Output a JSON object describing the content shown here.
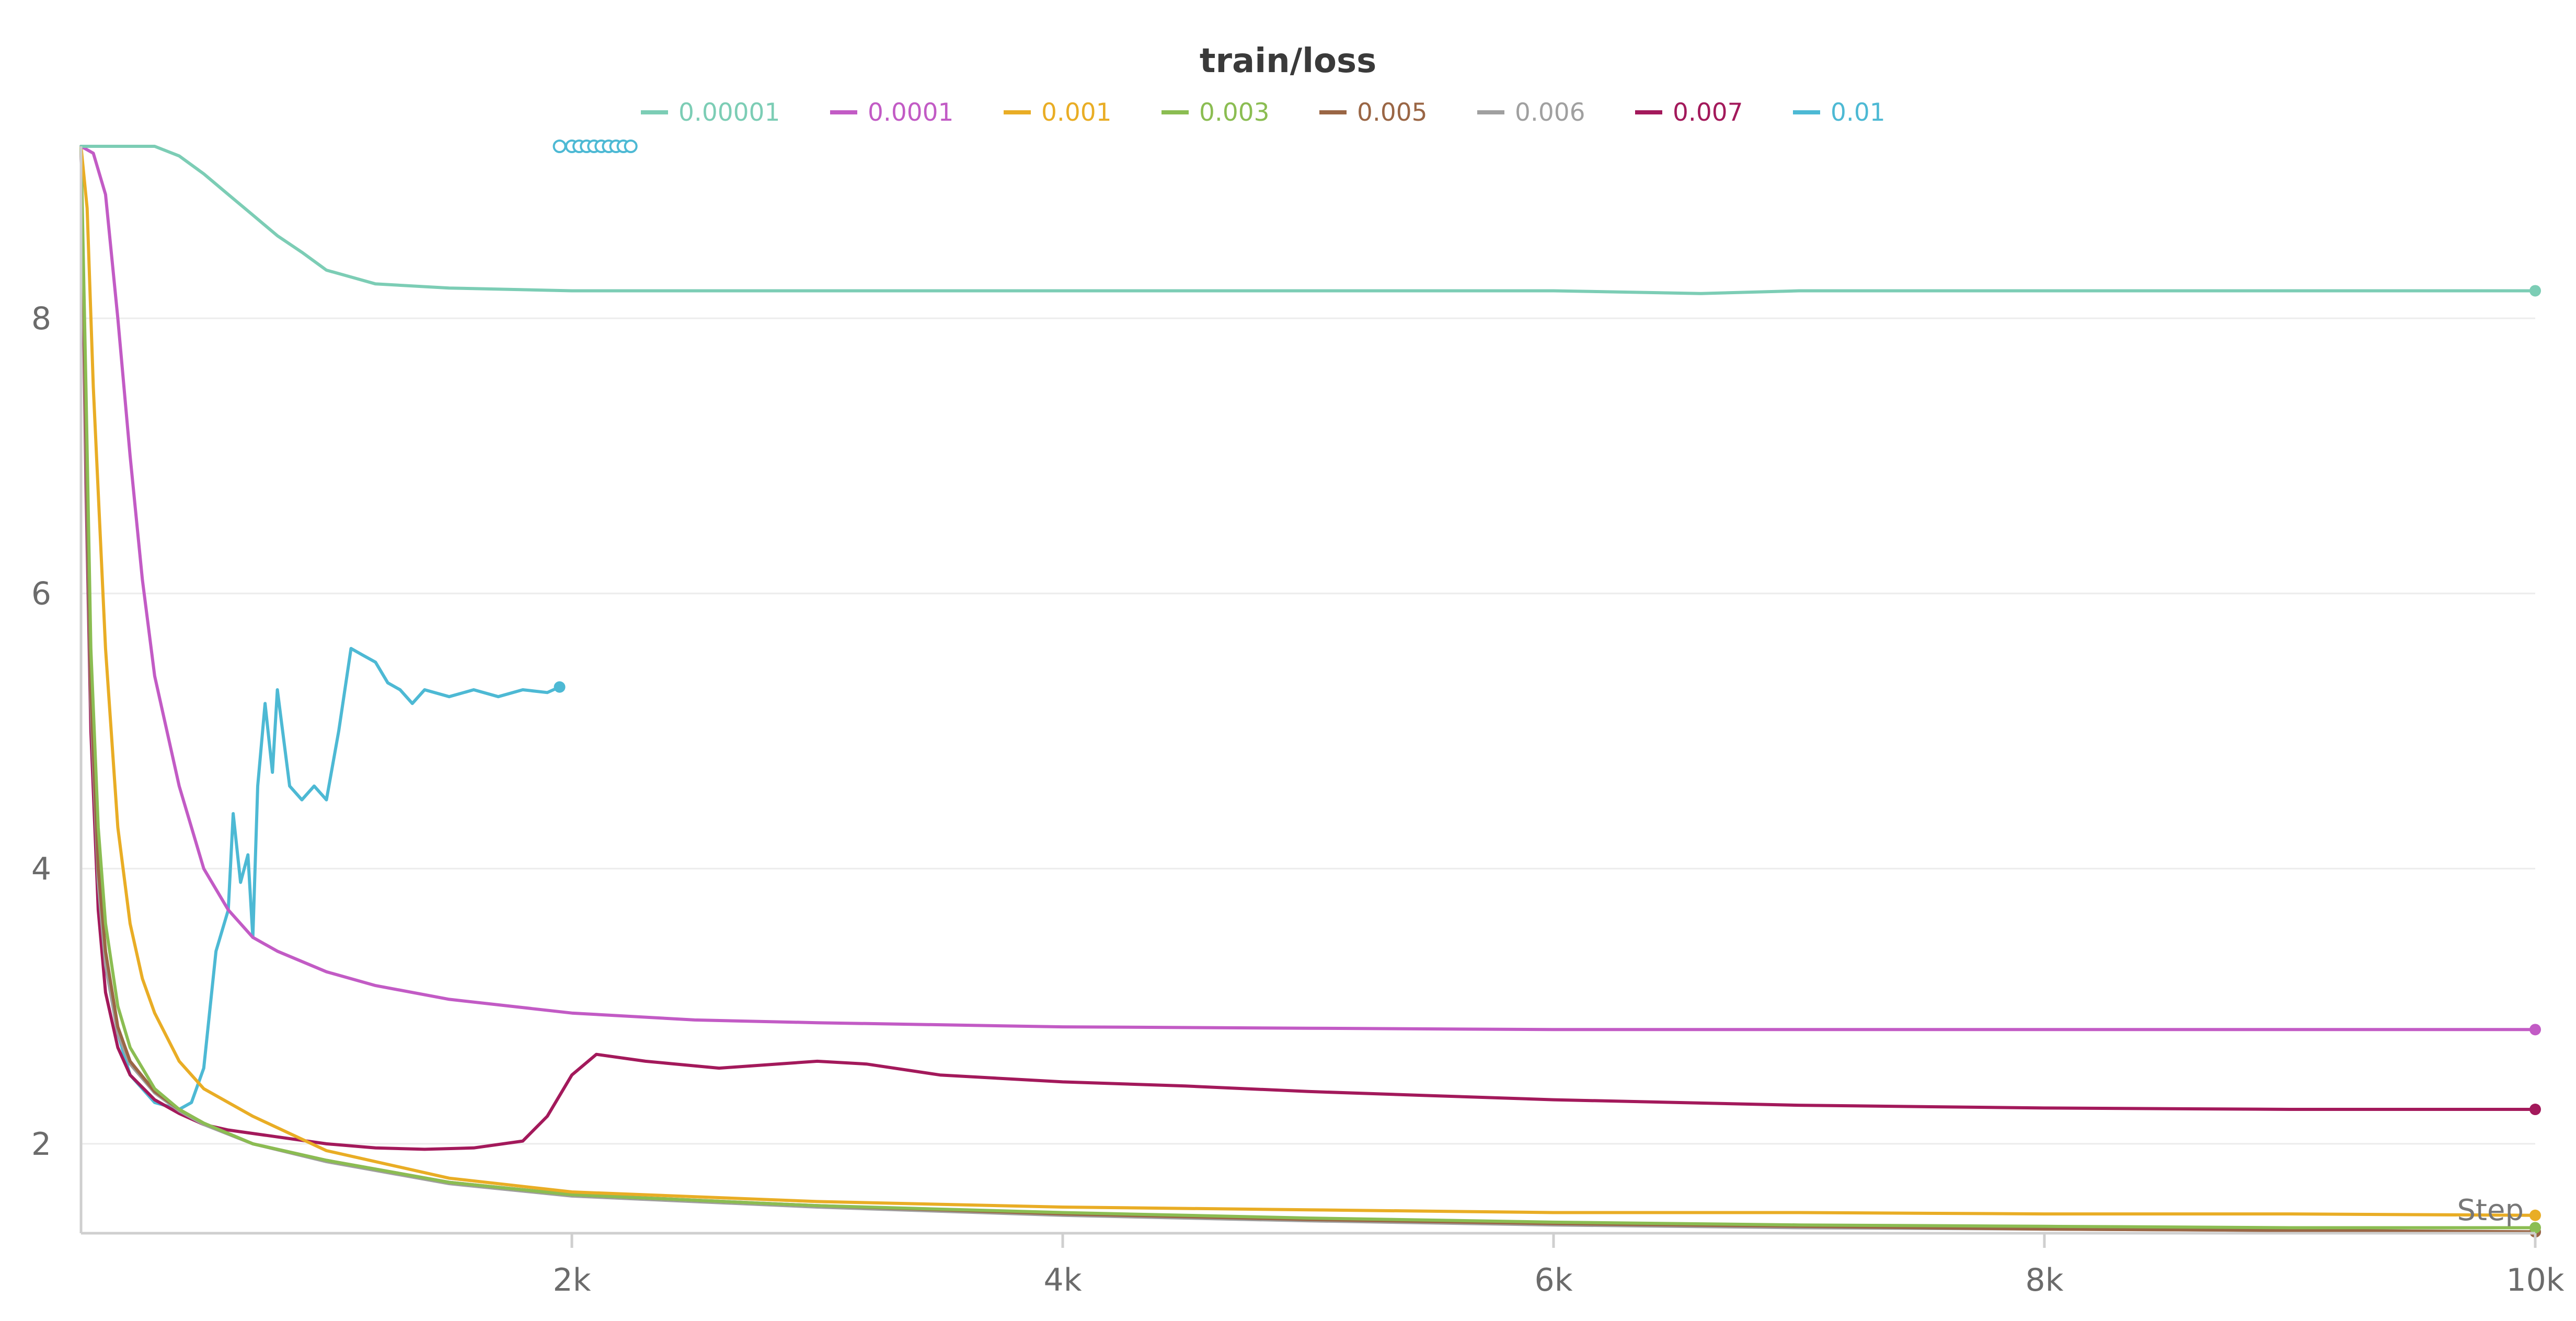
{
  "chart_data": {
    "type": "line",
    "title": "train/loss",
    "xlabel": "Step",
    "ylabel": "",
    "xlim": [
      0,
      10000
    ],
    "ylim": [
      1.35,
      9.25
    ],
    "x_ticks": [
      2000,
      4000,
      6000,
      8000,
      10000
    ],
    "x_tick_labels": [
      "2k",
      "4k",
      "6k",
      "8k",
      "10k"
    ],
    "y_ticks": [
      2,
      4,
      6,
      8
    ],
    "y_tick_labels": [
      "2",
      "4",
      "6",
      "8"
    ],
    "grid": true,
    "legend_position": "top-center",
    "series": [
      {
        "name": "0.00001",
        "color": "#7ccdb5",
        "x": [
          0,
          300,
          400,
          500,
          600,
          700,
          800,
          900,
          1000,
          1100,
          1200,
          1500,
          2000,
          3000,
          4000,
          5000,
          6000,
          6600,
          7000,
          8000,
          9000,
          10000
        ],
        "y": [
          9.25,
          9.25,
          9.18,
          9.05,
          8.9,
          8.75,
          8.6,
          8.48,
          8.35,
          8.3,
          8.25,
          8.22,
          8.2,
          8.2,
          8.2,
          8.2,
          8.2,
          8.18,
          8.2,
          8.2,
          8.2,
          8.2
        ]
      },
      {
        "name": "0.0001",
        "color": "#c25bc5",
        "x": [
          0,
          50,
          100,
          150,
          200,
          250,
          300,
          400,
          500,
          600,
          700,
          800,
          1000,
          1200,
          1500,
          2000,
          2500,
          3000,
          4000,
          5000,
          6000,
          7000,
          8000,
          9000,
          10000
        ],
        "y": [
          9.25,
          9.2,
          8.9,
          8.0,
          7.0,
          6.1,
          5.4,
          4.6,
          4.0,
          3.7,
          3.5,
          3.4,
          3.25,
          3.15,
          3.05,
          2.95,
          2.9,
          2.88,
          2.85,
          2.84,
          2.83,
          2.83,
          2.83,
          2.83,
          2.83
        ]
      },
      {
        "name": "0.001",
        "color": "#e9ad25",
        "x": [
          0,
          25,
          50,
          100,
          150,
          200,
          250,
          300,
          400,
          500,
          700,
          1000,
          1500,
          2000,
          3000,
          4000,
          5000,
          6000,
          7000,
          8000,
          9000,
          10000
        ],
        "y": [
          9.25,
          8.8,
          7.5,
          5.6,
          4.3,
          3.6,
          3.2,
          2.95,
          2.6,
          2.4,
          2.2,
          1.95,
          1.75,
          1.65,
          1.58,
          1.54,
          1.52,
          1.5,
          1.5,
          1.49,
          1.49,
          1.48
        ]
      },
      {
        "name": "0.003",
        "color": "#8bbd52",
        "x": [
          0,
          20,
          40,
          70,
          100,
          150,
          200,
          300,
          400,
          500,
          700,
          1000,
          1500,
          2000,
          3000,
          4000,
          5000,
          6000,
          7000,
          8000,
          9000,
          10000
        ],
        "y": [
          9.25,
          7.5,
          5.6,
          4.3,
          3.6,
          3.0,
          2.7,
          2.4,
          2.25,
          2.15,
          2.0,
          1.88,
          1.72,
          1.63,
          1.55,
          1.5,
          1.46,
          1.43,
          1.41,
          1.4,
          1.39,
          1.39
        ]
      },
      {
        "name": "0.005",
        "color": "#9a6645",
        "x": [
          0,
          20,
          40,
          70,
          100,
          150,
          200,
          300,
          400,
          500,
          700,
          1000,
          1500,
          2000,
          3000,
          4000,
          5000,
          6000,
          7000,
          8000,
          9000,
          10000
        ],
        "y": [
          9.25,
          7.2,
          5.3,
          4.0,
          3.4,
          2.85,
          2.6,
          2.38,
          2.25,
          2.15,
          2.0,
          1.88,
          1.72,
          1.63,
          1.55,
          1.49,
          1.45,
          1.42,
          1.4,
          1.38,
          1.37,
          1.36
        ]
      },
      {
        "name": "0.006",
        "color": "#a0a0a0",
        "x": [
          0,
          20,
          40,
          70,
          100,
          150,
          200,
          300,
          400,
          500,
          700,
          1000,
          1500,
          2000,
          3000,
          4000,
          5000,
          6000,
          7000,
          8000,
          9000,
          10000
        ],
        "y": [
          9.25,
          7.0,
          5.2,
          3.9,
          3.3,
          2.8,
          2.58,
          2.37,
          2.24,
          2.14,
          2.0,
          1.87,
          1.71,
          1.62,
          1.54,
          1.48,
          1.44,
          1.41,
          1.39,
          1.38,
          1.37,
          1.36
        ]
      },
      {
        "name": "0.007",
        "color": "#a3195b",
        "x": [
          0,
          20,
          40,
          70,
          100,
          150,
          200,
          300,
          400,
          500,
          600,
          800,
          1000,
          1200,
          1400,
          1600,
          1800,
          1900,
          2000,
          2100,
          2300,
          2600,
          3000,
          3200,
          3500,
          4000,
          4500,
          5000,
          5500,
          6000,
          7000,
          8000,
          9000,
          10000
        ],
        "y": [
          9.25,
          6.8,
          5.0,
          3.7,
          3.1,
          2.7,
          2.5,
          2.32,
          2.22,
          2.14,
          2.1,
          2.05,
          2.0,
          1.97,
          1.96,
          1.97,
          2.02,
          2.2,
          2.5,
          2.65,
          2.6,
          2.55,
          2.6,
          2.58,
          2.5,
          2.45,
          2.42,
          2.38,
          2.35,
          2.32,
          2.28,
          2.26,
          2.25,
          2.25
        ]
      },
      {
        "name": "0.01",
        "color": "#4db9d4",
        "x": [
          0,
          20,
          50,
          100,
          150,
          200,
          300,
          400,
          450,
          500,
          550,
          600,
          620,
          650,
          680,
          700,
          720,
          750,
          780,
          800,
          850,
          900,
          950,
          1000,
          1050,
          1100,
          1150,
          1200,
          1250,
          1300,
          1350,
          1400,
          1500,
          1600,
          1700,
          1800,
          1900,
          1950
        ],
        "y": [
          9.25,
          7.0,
          4.8,
          3.3,
          2.8,
          2.5,
          2.3,
          2.25,
          2.3,
          2.55,
          3.4,
          3.7,
          4.4,
          3.9,
          4.1,
          3.5,
          4.6,
          5.2,
          4.7,
          5.3,
          4.6,
          4.5,
          4.6,
          4.5,
          5.0,
          5.6,
          5.55,
          5.5,
          5.35,
          5.3,
          5.2,
          5.3,
          5.25,
          5.3,
          5.25,
          5.3,
          5.28,
          5.32
        ]
      }
    ],
    "markers": [
      {
        "series": "0.01",
        "x": [
          1950,
          2000,
          2030,
          2060,
          2090,
          2120,
          2150,
          2180,
          2210,
          2240
        ],
        "y": [
          9.25,
          9.25,
          9.25,
          9.25,
          9.25,
          9.25,
          9.25,
          9.25,
          9.25,
          9.25
        ]
      }
    ]
  }
}
